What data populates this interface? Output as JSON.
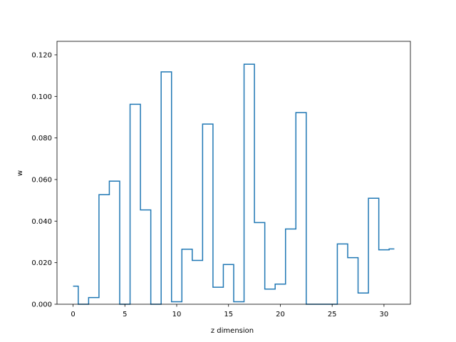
{
  "chart_data": {
    "type": "line",
    "style": "step",
    "xlabel": "z dimension",
    "ylabel": "w",
    "xlim": [
      -1.55,
      32.55
    ],
    "ylim": [
      0.0,
      0.1265
    ],
    "xticks": [
      0,
      5,
      10,
      15,
      20,
      25,
      30
    ],
    "yticks": [
      0.0,
      0.02,
      0.04,
      0.06,
      0.08,
      0.1,
      0.12
    ],
    "ytick_labels": [
      "0.000",
      "0.020",
      "0.040",
      "0.060",
      "0.080",
      "0.100",
      "0.120"
    ],
    "xtick_labels": [
      "0",
      "5",
      "10",
      "15",
      "20",
      "25",
      "30"
    ],
    "line_color": "#1f77b4",
    "series": [
      {
        "x": [
          0,
          1,
          2,
          3,
          4,
          5,
          6,
          7,
          8,
          9,
          10,
          11,
          12,
          13,
          14,
          15,
          16,
          17,
          18,
          19,
          20,
          21,
          22,
          23,
          24,
          25,
          26,
          27,
          28,
          29,
          30,
          31
        ],
        "values": [
          0.0087,
          0.0,
          0.0032,
          0.0527,
          0.0592,
          0.0,
          0.0962,
          0.0454,
          0.0,
          0.1118,
          0.0012,
          0.0265,
          0.0211,
          0.0867,
          0.0082,
          0.0191,
          0.0012,
          0.1155,
          0.0393,
          0.0073,
          0.0097,
          0.0362,
          0.0922,
          0.0,
          0.0,
          0.0,
          0.029,
          0.0224,
          0.0054,
          0.051,
          0.0262,
          0.0266
        ]
      }
    ]
  }
}
